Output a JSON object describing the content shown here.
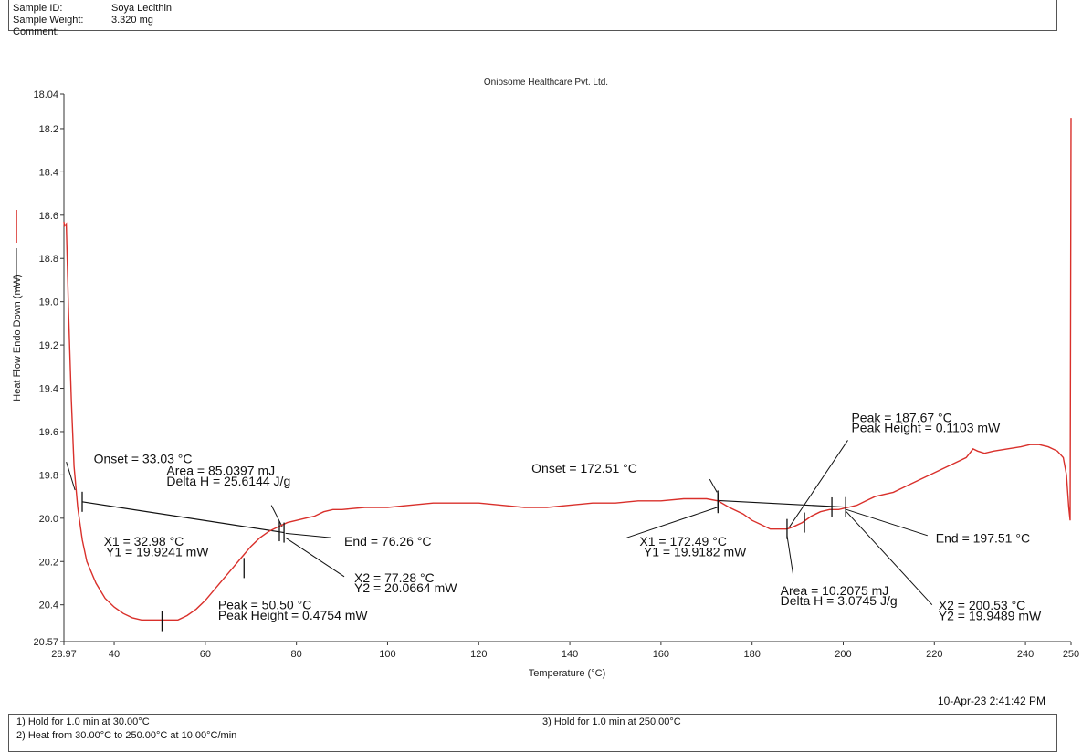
{
  "header": {
    "sample_id_label": "Sample ID:",
    "sample_id_value": "Soya Lecithin",
    "weight_label": "Sample Weight:",
    "weight_value": "3.320 mg",
    "comment_label": "Comment:"
  },
  "footer": {
    "timestamp": "10-Apr-23 2:41:42 PM",
    "step1": "1)  Hold for 1.0 min at 30.00°C",
    "step2": "2)  Heat from 30.00°C to 250.00°C at 10.00°C/min",
    "step3": "3)    Hold for 1.0 min at 250.00°C"
  },
  "chart_data": {
    "type": "line",
    "title": "Oniosome Healthcare Pvt. Ltd.",
    "xlabel": "Temperature (°C)",
    "ylabel": "Heat Flow Endo Down (mW)",
    "xlim": [
      28.97,
      250
    ],
    "ylim": [
      18.04,
      20.57
    ],
    "y_inverted": true,
    "grid": false,
    "line_color": "#d9302b",
    "x_ticks": [
      "28.97",
      "40",
      "60",
      "80",
      "100",
      "120",
      "140",
      "160",
      "180",
      "200",
      "220",
      "240",
      "250"
    ],
    "x_tick_values": [
      28.97,
      40,
      60,
      80,
      100,
      120,
      140,
      160,
      180,
      200,
      220,
      240,
      250
    ],
    "y_ticks": [
      "18.04",
      "18.2",
      "18.4",
      "18.6",
      "18.8",
      "19.0",
      "19.2",
      "19.4",
      "19.6",
      "19.8",
      "20.0",
      "20.2",
      "20.4",
      "20.57"
    ],
    "y_tick_values": [
      18.04,
      18.2,
      18.4,
      18.6,
      18.8,
      19.0,
      19.2,
      19.4,
      19.6,
      19.8,
      20.0,
      20.2,
      20.4,
      20.57
    ],
    "series": [
      {
        "x": [
          28.97,
          29.1,
          29.5,
          30.0,
          30.6,
          31.2,
          32.0,
          33.0,
          34.0,
          36.0,
          38.0,
          40.0,
          42.0,
          44.0,
          46.0,
          48.0,
          50.0,
          52.0,
          54.0,
          56.0,
          58.0,
          60.0,
          62.0,
          64.0,
          66.0,
          68.0,
          70.0,
          72.0,
          74.0,
          76.0,
          78.0,
          80.0,
          82.0,
          84.0,
          86.0,
          88.0,
          90.0,
          95.0,
          100.0,
          105.0,
          110.0,
          115.0,
          120.0,
          125.0,
          130.0,
          135.0,
          140.0,
          145.0,
          150.0,
          155.0,
          160.0,
          165.0,
          170.0,
          172.5,
          175.0,
          178.0,
          180.0,
          182.0,
          184.0,
          186.0,
          187.67,
          189.0,
          191.0,
          193.0,
          195.0,
          197.0,
          199.0,
          201.0,
          203.0,
          205.0,
          207.0,
          209.0,
          211.0,
          213.0,
          215.0,
          218.0,
          221.0,
          224.0,
          227.0,
          228.5,
          229.5,
          231.0,
          233.0,
          236.0,
          239.0,
          241.0,
          243.0,
          245.0,
          247.0,
          248.3,
          249.0,
          249.5,
          249.8,
          250.0
        ],
        "y": [
          18.63,
          18.65,
          18.64,
          19.05,
          19.45,
          19.76,
          19.95,
          20.1,
          20.2,
          20.3,
          20.37,
          20.41,
          20.44,
          20.46,
          20.47,
          20.47,
          20.47,
          20.47,
          20.47,
          20.45,
          20.42,
          20.38,
          20.33,
          20.28,
          20.23,
          20.18,
          20.13,
          20.09,
          20.06,
          20.04,
          20.02,
          20.01,
          20.0,
          19.99,
          19.97,
          19.96,
          19.96,
          19.95,
          19.95,
          19.94,
          19.93,
          19.93,
          19.93,
          19.94,
          19.95,
          19.95,
          19.94,
          19.93,
          19.93,
          19.92,
          19.92,
          19.91,
          19.91,
          19.92,
          19.95,
          19.98,
          20.01,
          20.03,
          20.05,
          20.05,
          20.05,
          20.04,
          20.02,
          19.99,
          19.97,
          19.96,
          19.96,
          19.95,
          19.94,
          19.92,
          19.9,
          19.89,
          19.88,
          19.86,
          19.84,
          19.81,
          19.78,
          19.75,
          19.72,
          19.68,
          19.69,
          19.7,
          19.69,
          19.68,
          19.67,
          19.66,
          19.66,
          19.67,
          19.69,
          19.72,
          19.8,
          19.95,
          20.01,
          18.15
        ]
      }
    ],
    "baselines": [
      {
        "x1": 32.98,
        "y1": 19.9241,
        "x2": 77.28,
        "y2": 20.0664
      },
      {
        "x1": 172.49,
        "y1": 19.9182,
        "x2": 200.53,
        "y2": 19.9489
      }
    ],
    "markers": [
      {
        "x": 32.98,
        "y": 19.9241
      },
      {
        "x": 50.5,
        "y": 20.4754
      },
      {
        "x": 68.5,
        "y": 20.23
      },
      {
        "x": 76.26,
        "y": 20.06
      },
      {
        "x": 77.28,
        "y": 20.0664
      },
      {
        "x": 172.49,
        "y": 19.9182
      },
      {
        "x": 172.51,
        "y": 19.93
      },
      {
        "x": 187.67,
        "y": 20.05
      },
      {
        "x": 191.5,
        "y": 20.02
      },
      {
        "x": 197.51,
        "y": 19.95
      },
      {
        "x": 200.53,
        "y": 19.9489
      }
    ],
    "annotations": [
      {
        "text": "Onset = 33.03 °C",
        "x": 35.5,
        "y": 19.745
      },
      {
        "text": "Area = 85.0397 mJ",
        "x": 51.5,
        "y": 19.8
      },
      {
        "text": "Delta H = 25.6144 J/g",
        "x": 51.5,
        "y": 19.85
      },
      {
        "text": "X1 = 32.98 °C",
        "x": 37.7,
        "y": 20.128
      },
      {
        "text": "Y1 = 19.9241 mW",
        "x": 38.2,
        "y": 20.176
      },
      {
        "text": "End = 76.26 °C",
        "x": 90.5,
        "y": 20.128
      },
      {
        "text": "X2 = 77.28 °C",
        "x": 92.7,
        "y": 20.295
      },
      {
        "text": "Y2 = 20.0664 mW",
        "x": 92.7,
        "y": 20.342
      },
      {
        "text": "Peak = 50.50 °C",
        "x": 62.8,
        "y": 20.42
      },
      {
        "text": "Peak Height = 0.4754 mW",
        "x": 62.8,
        "y": 20.468
      },
      {
        "text": "Onset = 172.51 °C",
        "x": 131.6,
        "y": 19.79
      },
      {
        "text": "X1 = 172.49 °C",
        "x": 155.3,
        "y": 20.128
      },
      {
        "text": "Y1 = 19.9182 mW",
        "x": 156.2,
        "y": 20.176
      },
      {
        "text": "Peak = 187.67 °C",
        "x": 201.8,
        "y": 19.555
      },
      {
        "text": "Peak Height = 0.1103 mW",
        "x": 201.8,
        "y": 19.603
      },
      {
        "text": "End = 197.51 °C",
        "x": 220.3,
        "y": 20.112
      },
      {
        "text": "Area = 10.2075 mJ",
        "x": 186.2,
        "y": 20.355
      },
      {
        "text": "Delta H = 3.0745 J/g",
        "x": 186.2,
        "y": 20.402
      },
      {
        "text": "X2 = 200.53 °C",
        "x": 220.9,
        "y": 20.422
      },
      {
        "text": "Y2 = 19.9489 mW",
        "x": 220.9,
        "y": 20.47
      }
    ],
    "leaders": [
      {
        "from": [
          29.5,
          19.74
        ],
        "to": [
          31.4,
          19.87
        ]
      },
      {
        "from": [
          74.5,
          19.94
        ],
        "to": [
          76.9,
          20.04
        ]
      },
      {
        "from": [
          87.5,
          20.09
        ],
        "to": [
          77.6,
          20.07
        ]
      },
      {
        "from": [
          90.5,
          20.27
        ],
        "to": [
          77.6,
          20.09
        ]
      },
      {
        "from": [
          152.5,
          20.09
        ],
        "to": [
          172.3,
          19.95
        ]
      },
      {
        "from": [
          170.7,
          19.82
        ],
        "to": [
          172.3,
          19.88
        ]
      },
      {
        "from": [
          189.0,
          20.26
        ],
        "to": [
          187.67,
          20.08
        ]
      },
      {
        "from": [
          201.0,
          19.64
        ],
        "to": [
          188.2,
          20.04
        ]
      },
      {
        "from": [
          218.5,
          20.08
        ],
        "to": [
          200.7,
          19.96
        ]
      },
      {
        "from": [
          219.5,
          20.4
        ],
        "to": [
          200.7,
          19.97
        ]
      }
    ]
  }
}
